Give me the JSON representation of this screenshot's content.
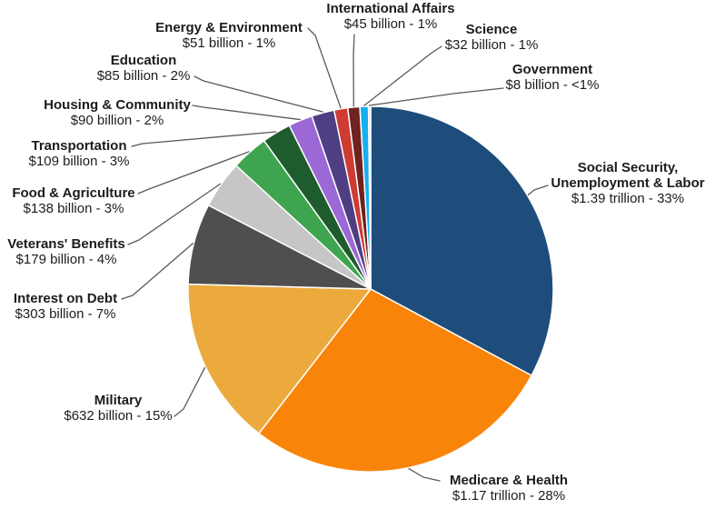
{
  "chart_data": {
    "type": "pie",
    "title": "",
    "unit": "USD",
    "start_angle_deg": 0,
    "direction": "clockwise",
    "legend_position": "callout-labels",
    "slice_stroke_color": "#ffffff",
    "leader_line_color": "#595959",
    "label_text_color": "#1c1c1c",
    "segments": [
      {
        "name": "Social Security, Unemployment & Labor",
        "value_billions": 1390,
        "value_label": "$1.39 trillion - 33%",
        "percent": "33%",
        "color": "#1e4d7c"
      },
      {
        "name": "Medicare & Health",
        "value_billions": 1170,
        "value_label": "$1.17 trillion - 28%",
        "percent": "28%",
        "color": "#f9840a"
      },
      {
        "name": "Military",
        "value_billions": 632,
        "value_label": "$632 billion - 15%",
        "percent": "15%",
        "color": "#ecaa3d"
      },
      {
        "name": "Interest on Debt",
        "value_billions": 303,
        "value_label": "$303 billion - 7%",
        "percent": "7%",
        "color": "#4f4f4f"
      },
      {
        "name": "Veterans' Benefits",
        "value_billions": 179,
        "value_label": "$179 billion - 4%",
        "percent": "4%",
        "color": "#c6c6c6"
      },
      {
        "name": "Food & Agriculture",
        "value_billions": 138,
        "value_label": "$138 billion - 3%",
        "percent": "3%",
        "color": "#3ea44f"
      },
      {
        "name": "Transportation",
        "value_billions": 109,
        "value_label": "$109 billion - 3%",
        "percent": "3%",
        "color": "#1f5c2d"
      },
      {
        "name": "Housing & Community",
        "value_billions": 90,
        "value_label": "$90 billion - 2%",
        "percent": "2%",
        "color": "#9c68d6"
      },
      {
        "name": "Education",
        "value_billions": 85,
        "value_label": "$85 billion - 2%",
        "percent": "2%",
        "color": "#4f3e82"
      },
      {
        "name": "Energy & Environment",
        "value_billions": 51,
        "value_label": "$51 billion - 1%",
        "percent": "1%",
        "color": "#ce3b32"
      },
      {
        "name": "International Affairs",
        "value_billions": 45,
        "value_label": "$45 billion - 1%",
        "percent": "1%",
        "color": "#6e2320"
      },
      {
        "name": "Science",
        "value_billions": 32,
        "value_label": "$32 billion - 1%",
        "percent": "1%",
        "color": "#15aff0"
      },
      {
        "name": "Government",
        "value_billions": 8,
        "value_label": "$8 billion - <1%",
        "percent": "<1%",
        "color": "#d9d9d9"
      }
    ]
  }
}
